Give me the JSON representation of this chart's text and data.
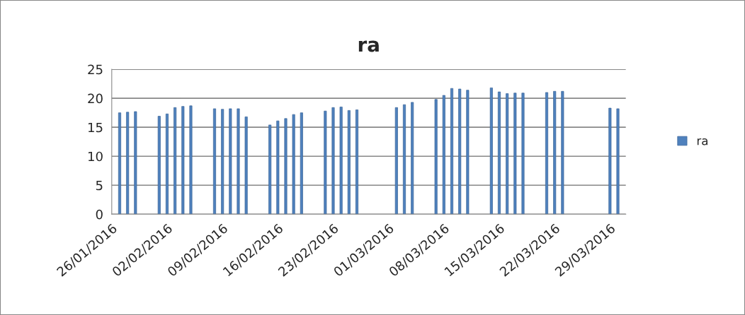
{
  "chart_data": {
    "type": "bar",
    "title": "ra",
    "x": [
      "2016-01-27",
      "2016-01-28",
      "2016-01-29",
      "2016-02-01",
      "2016-02-02",
      "2016-02-03",
      "2016-02-04",
      "2016-02-05",
      "2016-02-08",
      "2016-02-09",
      "2016-02-10",
      "2016-02-11",
      "2016-02-12",
      "2016-02-15",
      "2016-02-16",
      "2016-02-17",
      "2016-02-18",
      "2016-02-19",
      "2016-02-22",
      "2016-02-23",
      "2016-02-24",
      "2016-02-25",
      "2016-02-26",
      "2016-03-02",
      "2016-03-03",
      "2016-03-04",
      "2016-03-07",
      "2016-03-08",
      "2016-03-09",
      "2016-03-10",
      "2016-03-11",
      "2016-03-14",
      "2016-03-15",
      "2016-03-16",
      "2016-03-17",
      "2016-03-18",
      "2016-03-21",
      "2016-03-22",
      "2016-03-23",
      "2016-03-29",
      "2016-03-30"
    ],
    "series": [
      {
        "name": "ra",
        "color": "#4f81bd",
        "values": [
          17.5,
          17.6,
          17.7,
          16.9,
          17.3,
          18.4,
          18.6,
          18.7,
          18.2,
          18.1,
          18.2,
          18.2,
          16.8,
          15.4,
          16.1,
          16.5,
          17.2,
          17.5,
          17.8,
          18.4,
          18.5,
          17.9,
          18.0,
          18.4,
          18.9,
          19.3,
          19.8,
          20.5,
          21.7,
          21.6,
          21.4,
          21.8,
          21.1,
          20.8,
          20.9,
          20.9,
          21.0,
          21.2,
          21.2,
          18.3,
          18.2
        ]
      }
    ],
    "xlim": [
      "2016-01-26",
      "2016-03-31"
    ],
    "xticks": [
      {
        "value": "2016-01-26",
        "label": "26/01/2016"
      },
      {
        "value": "2016-02-02",
        "label": "02/02/2016"
      },
      {
        "value": "2016-02-09",
        "label": "09/02/2016"
      },
      {
        "value": "2016-02-16",
        "label": "16/02/2016"
      },
      {
        "value": "2016-02-23",
        "label": "23/02/2016"
      },
      {
        "value": "2016-03-01",
        "label": "01/03/2016"
      },
      {
        "value": "2016-03-08",
        "label": "08/03/2016"
      },
      {
        "value": "2016-03-15",
        "label": "15/03/2016"
      },
      {
        "value": "2016-03-22",
        "label": "22/03/2016"
      },
      {
        "value": "2016-03-29",
        "label": "29/03/2016"
      }
    ],
    "ylim": [
      0,
      25
    ],
    "yticks": [
      0,
      5,
      10,
      15,
      20,
      25
    ],
    "grid": "y",
    "legend": "right"
  }
}
